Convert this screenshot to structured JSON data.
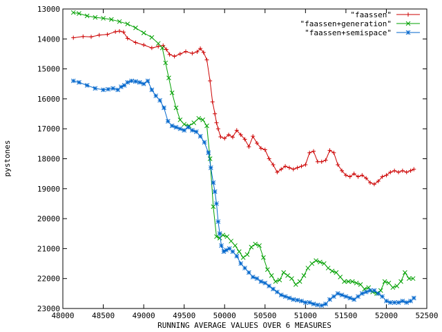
{
  "chart_data": {
    "type": "line",
    "xlabel": "RUNNING AVERAGE VALUES OVER 6 MEASURES",
    "ylabel": "pystones",
    "xlim": [
      48000,
      52500
    ],
    "ylim": [
      13000,
      23000
    ],
    "y_reversed": true,
    "grid": false,
    "legend_position": "top-right",
    "x_ticks": [
      48000,
      48500,
      49000,
      49500,
      50000,
      50500,
      51000,
      51500,
      52000,
      52500
    ],
    "y_ticks": [
      13000,
      14000,
      15000,
      16000,
      17000,
      18000,
      19000,
      20000,
      21000,
      22000,
      23000
    ],
    "series": [
      {
        "name": "\"faassen\"",
        "color": "#cc0000",
        "marker": "plus",
        "x": [
          48130,
          48250,
          48350,
          48450,
          48550,
          48650,
          48700,
          48750,
          48800,
          48900,
          49000,
          49100,
          49180,
          49240,
          49280,
          49320,
          49380,
          49450,
          49520,
          49600,
          49660,
          49700,
          49740,
          49780,
          49820,
          49850,
          49880,
          49900,
          49920,
          49950,
          50000,
          50050,
          50100,
          50150,
          50200,
          50250,
          50300,
          50350,
          50400,
          50450,
          50500,
          50550,
          50600,
          50650,
          50700,
          50750,
          50800,
          50850,
          50900,
          50950,
          51000,
          51050,
          51100,
          51150,
          51200,
          51250,
          51300,
          51350,
          51400,
          51450,
          51500,
          51550,
          51600,
          51650,
          51700,
          51750,
          51800,
          51850,
          51900,
          51950,
          52000,
          52050,
          52100,
          52150,
          52200,
          52250,
          52300,
          52340
        ],
        "y": [
          13960,
          13920,
          13930,
          13870,
          13850,
          13760,
          13740,
          13770,
          13980,
          14120,
          14200,
          14300,
          14250,
          14220,
          14350,
          14520,
          14580,
          14500,
          14420,
          14480,
          14430,
          14320,
          14450,
          14700,
          15400,
          16100,
          16500,
          16800,
          17000,
          17270,
          17320,
          17200,
          17280,
          17050,
          17200,
          17350,
          17600,
          17250,
          17480,
          17650,
          17700,
          18000,
          18200,
          18450,
          18350,
          18250,
          18300,
          18350,
          18300,
          18250,
          18200,
          17800,
          17750,
          18100,
          18100,
          18050,
          17720,
          17800,
          18200,
          18400,
          18550,
          18600,
          18500,
          18600,
          18550,
          18650,
          18800,
          18850,
          18750,
          18600,
          18550,
          18450,
          18400,
          18450,
          18400,
          18450,
          18400,
          18350
        ]
      },
      {
        "name": "\"faassen+generation\"",
        "color": "#00a000",
        "marker": "cross",
        "x": [
          48130,
          48200,
          48300,
          48400,
          48500,
          48600,
          48700,
          48800,
          48900,
          49000,
          49100,
          49180,
          49230,
          49270,
          49310,
          49350,
          49400,
          49450,
          49500,
          49560,
          49620,
          49680,
          49730,
          49780,
          49820,
          49860,
          49900,
          49940,
          49980,
          50030,
          50080,
          50130,
          50180,
          50230,
          50280,
          50330,
          50380,
          50430,
          50480,
          50530,
          50580,
          50630,
          50680,
          50730,
          50780,
          50830,
          50880,
          50930,
          50980,
          51030,
          51080,
          51130,
          51180,
          51230,
          51280,
          51330,
          51380,
          51430,
          51480,
          51530,
          51580,
          51630,
          51680,
          51730,
          51780,
          51830,
          51880,
          51930,
          51980,
          52030,
          52080,
          52130,
          52180,
          52230,
          52280,
          52330
        ],
        "y": [
          13120,
          13150,
          13230,
          13280,
          13310,
          13350,
          13420,
          13500,
          13630,
          13800,
          13950,
          14150,
          14300,
          14800,
          15300,
          15800,
          16300,
          16700,
          16850,
          16900,
          16800,
          16650,
          16700,
          16900,
          18000,
          19600,
          20600,
          20650,
          20550,
          20600,
          20750,
          20900,
          21100,
          21300,
          21200,
          20950,
          20850,
          20900,
          21300,
          21700,
          21900,
          22100,
          22050,
          21800,
          21900,
          22000,
          22200,
          22100,
          21900,
          21650,
          21500,
          21400,
          21450,
          21500,
          21650,
          21750,
          21800,
          21950,
          22100,
          22100,
          22100,
          22150,
          22200,
          22350,
          22300,
          22450,
          22500,
          22400,
          22100,
          22150,
          22300,
          22250,
          22100,
          21800,
          22000,
          22000
        ]
      },
      {
        "name": "\"faassen+semispace\"",
        "color": "#0066cc",
        "marker": "star",
        "x": [
          48130,
          48200,
          48300,
          48400,
          48500,
          48560,
          48620,
          48680,
          48720,
          48760,
          48800,
          48850,
          48900,
          48950,
          49000,
          49050,
          49100,
          49150,
          49200,
          49250,
          49300,
          49350,
          49400,
          49450,
          49500,
          49550,
          49600,
          49650,
          49700,
          49750,
          49800,
          49830,
          49860,
          49880,
          49900,
          49920,
          49940,
          49960,
          49990,
          50020,
          50060,
          50100,
          50150,
          50200,
          50250,
          50300,
          50350,
          50400,
          50450,
          50500,
          50550,
          50600,
          50650,
          50700,
          50750,
          50800,
          50850,
          50900,
          50950,
          51000,
          51050,
          51100,
          51150,
          51200,
          51250,
          51300,
          51350,
          51400,
          51450,
          51500,
          51550,
          51600,
          51650,
          51700,
          51750,
          51800,
          51850,
          51900,
          51950,
          52000,
          52050,
          52100,
          52150,
          52200,
          52250,
          52300,
          52340
        ],
        "y": [
          15400,
          15450,
          15550,
          15650,
          15700,
          15680,
          15650,
          15700,
          15600,
          15550,
          15450,
          15400,
          15420,
          15450,
          15500,
          15400,
          15700,
          15900,
          16050,
          16300,
          16750,
          16900,
          16950,
          17000,
          17050,
          16950,
          17050,
          17100,
          17250,
          17450,
          17800,
          18300,
          18800,
          19100,
          19500,
          20100,
          20500,
          20900,
          21100,
          21050,
          21000,
          21100,
          21250,
          21500,
          21650,
          21800,
          21950,
          22000,
          22100,
          22150,
          22250,
          22350,
          22450,
          22550,
          22600,
          22650,
          22700,
          22720,
          22750,
          22800,
          22800,
          22850,
          22880,
          22900,
          22850,
          22700,
          22600,
          22500,
          22550,
          22600,
          22650,
          22700,
          22600,
          22500,
          22450,
          22400,
          22400,
          22500,
          22600,
          22750,
          22800,
          22800,
          22800,
          22750,
          22800,
          22750,
          22650
        ]
      }
    ]
  }
}
